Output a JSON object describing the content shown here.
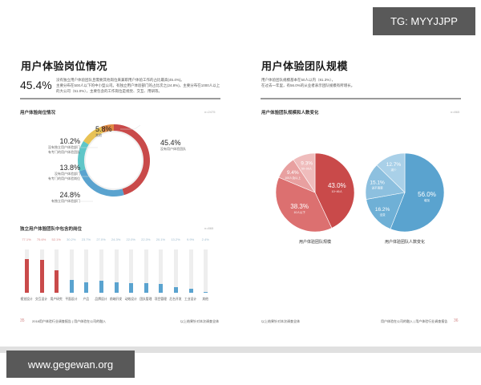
{
  "watermarks": {
    "top_right": "TG: MYYJJPP",
    "bottom_left": "www.gegewan.org"
  },
  "left_page": {
    "title": "用户体验岗位情况",
    "big_stat": "45.4%",
    "description": [
      "没有独立用户体验团队且需要其他岗位来兼职用户体验工作的占比最高(45.4%)。",
      "主要分布在500人以下的中小型公司。有独立用户体验部门的占比次之(24.8%)，主要分布在1000人以上",
      "的大公司（51.0%），主要包含的工作岗位是视觉、交互、用研等。"
    ],
    "donut_section": {
      "title": "用户体验岗位情况",
      "n_label": "n=2475",
      "callouts": [
        {
          "pct": "5.8%",
          "label": [
            "其他"
          ]
        },
        {
          "pct": "10.2%",
          "label": [
            "没有独立用户体验部门",
            "有专门的用户体验团队"
          ]
        },
        {
          "pct": "13.8%",
          "label": [
            "没有用户体验部门",
            "有专门的用户体验岗位"
          ]
        },
        {
          "pct": "24.8%",
          "label": [
            "有独立用户体验部门"
          ]
        },
        {
          "pct": "45.4%",
          "label": [
            "没有用户体验团队"
          ]
        }
      ]
    },
    "bar_section": {
      "title": "独立用户体验团队中包含的岗位",
      "n_label": "n=865"
    },
    "footer": {
      "page_number": "35",
      "left_text": "2018用户体验行业调查报告 | 用户体验在公司的融入",
      "right_text": "以上结果针对本次调查全体"
    }
  },
  "right_page": {
    "title": "用户体验团队规模",
    "description": [
      "用户体验团队规模基本在50人以内（81.3%），",
      "在过去一年里，有56.0%的从业者表示团队规模有所增长。"
    ],
    "pie_section": {
      "title": "用户体验团队规模和人数变化",
      "n_label": "n=865",
      "captions": [
        "用户体验团队规模",
        "用户体验团队人数变化"
      ]
    },
    "footer": {
      "page_number": "36",
      "left_text": "以上结果针对本次调查全体",
      "right_text": "用户体验在公司的融入 | 用户体验行业调查报告"
    }
  },
  "colors": {
    "red": "#c94a4a",
    "red_light": "#dc7070",
    "red_lighter": "#e8a0a0",
    "red_lightest": "#efbcbc",
    "blue": "#5aa3cf",
    "blue_light": "#8dc0df",
    "teal": "#5fc6c8",
    "yellow": "#e8c255",
    "orange": "#e08a44",
    "track": "#eeeeee"
  },
  "chart_data": [
    {
      "type": "pie",
      "title": "用户体验岗位情况",
      "subtitle": "n=2475",
      "style": "donut",
      "categories": [
        "没有用户体验团队",
        "有独立用户体验部门",
        "没有用户体验部门 有专门的用户体验岗位",
        "没有独立用户体验部门 有专门的用户体验团队",
        "其他"
      ],
      "values": [
        45.4,
        24.8,
        13.8,
        10.2,
        5.8
      ],
      "colors": [
        "#c94a4a",
        "#5aa3cf",
        "#5fc6c8",
        "#e8c255",
        "#e08a44"
      ]
    },
    {
      "type": "bar",
      "title": "独立用户体验团队中包含的岗位",
      "subtitle": "n=865",
      "categories": [
        "视觉设计",
        "交互设计",
        "用户研究",
        "平面设计",
        "产品",
        "品牌设计",
        "前端开发",
        "动效设计",
        "团队管理",
        "项目管理",
        "后台开发",
        "工业设计",
        "其他"
      ],
      "values": [
        77.1,
        75.6,
        52.1,
        30.2,
        23.7,
        27.0,
        24.3,
        22.0,
        22.3,
        20.1,
        13.2,
        9.9,
        2.4
      ],
      "labels": [
        "77.1%",
        "75.6%",
        "52.1%",
        "30.2%",
        "23.7%",
        "27.0%",
        "24.3%",
        "22.0%",
        "22.3%",
        "20.1%",
        "13.2%",
        "9.9%",
        "2.4%"
      ],
      "highlight_top": 3,
      "ylim": [
        0,
        100
      ]
    },
    {
      "type": "pie",
      "title": "用户体验团队规模",
      "categories": [
        "10~49人",
        "10人以下",
        "100人及以上",
        "50~99人"
      ],
      "values": [
        43.0,
        38.3,
        9.4,
        9.3
      ],
      "colors": [
        "#c94a4a",
        "#dc7070",
        "#e8a0a0",
        "#efbcbc"
      ]
    },
    {
      "type": "pie",
      "title": "用户体验团队人数变化",
      "categories": [
        "增加",
        "没变",
        "说不清楚",
        "减少"
      ],
      "values": [
        56.0,
        16.2,
        15.1,
        12.7
      ],
      "colors": [
        "#5aa3cf",
        "#6fb0d6",
        "#8dc0df",
        "#a9d0e8"
      ]
    }
  ]
}
